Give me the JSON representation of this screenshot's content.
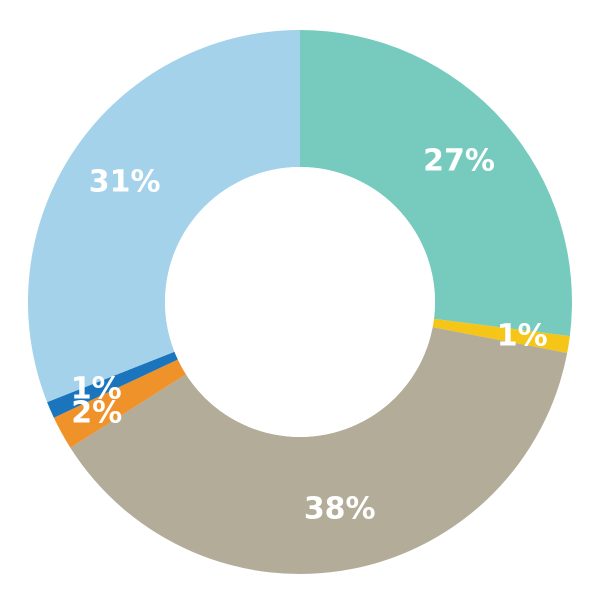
{
  "chart_data": {
    "type": "pie",
    "variant": "donut",
    "slices": [
      {
        "label": "27%",
        "value": 27,
        "color": "#76CBBE"
      },
      {
        "label": "1%",
        "value": 1,
        "color": "#F5C518"
      },
      {
        "label": "38%",
        "value": 38,
        "color": "#B2AC98"
      },
      {
        "label": "2%",
        "value": 2,
        "color": "#F0922A"
      },
      {
        "label": "1%",
        "value": 1,
        "color": "#1B75BC"
      },
      {
        "label": "31%",
        "value": 31,
        "color": "#A3D2EA"
      }
    ],
    "title": "",
    "legend": "none"
  }
}
